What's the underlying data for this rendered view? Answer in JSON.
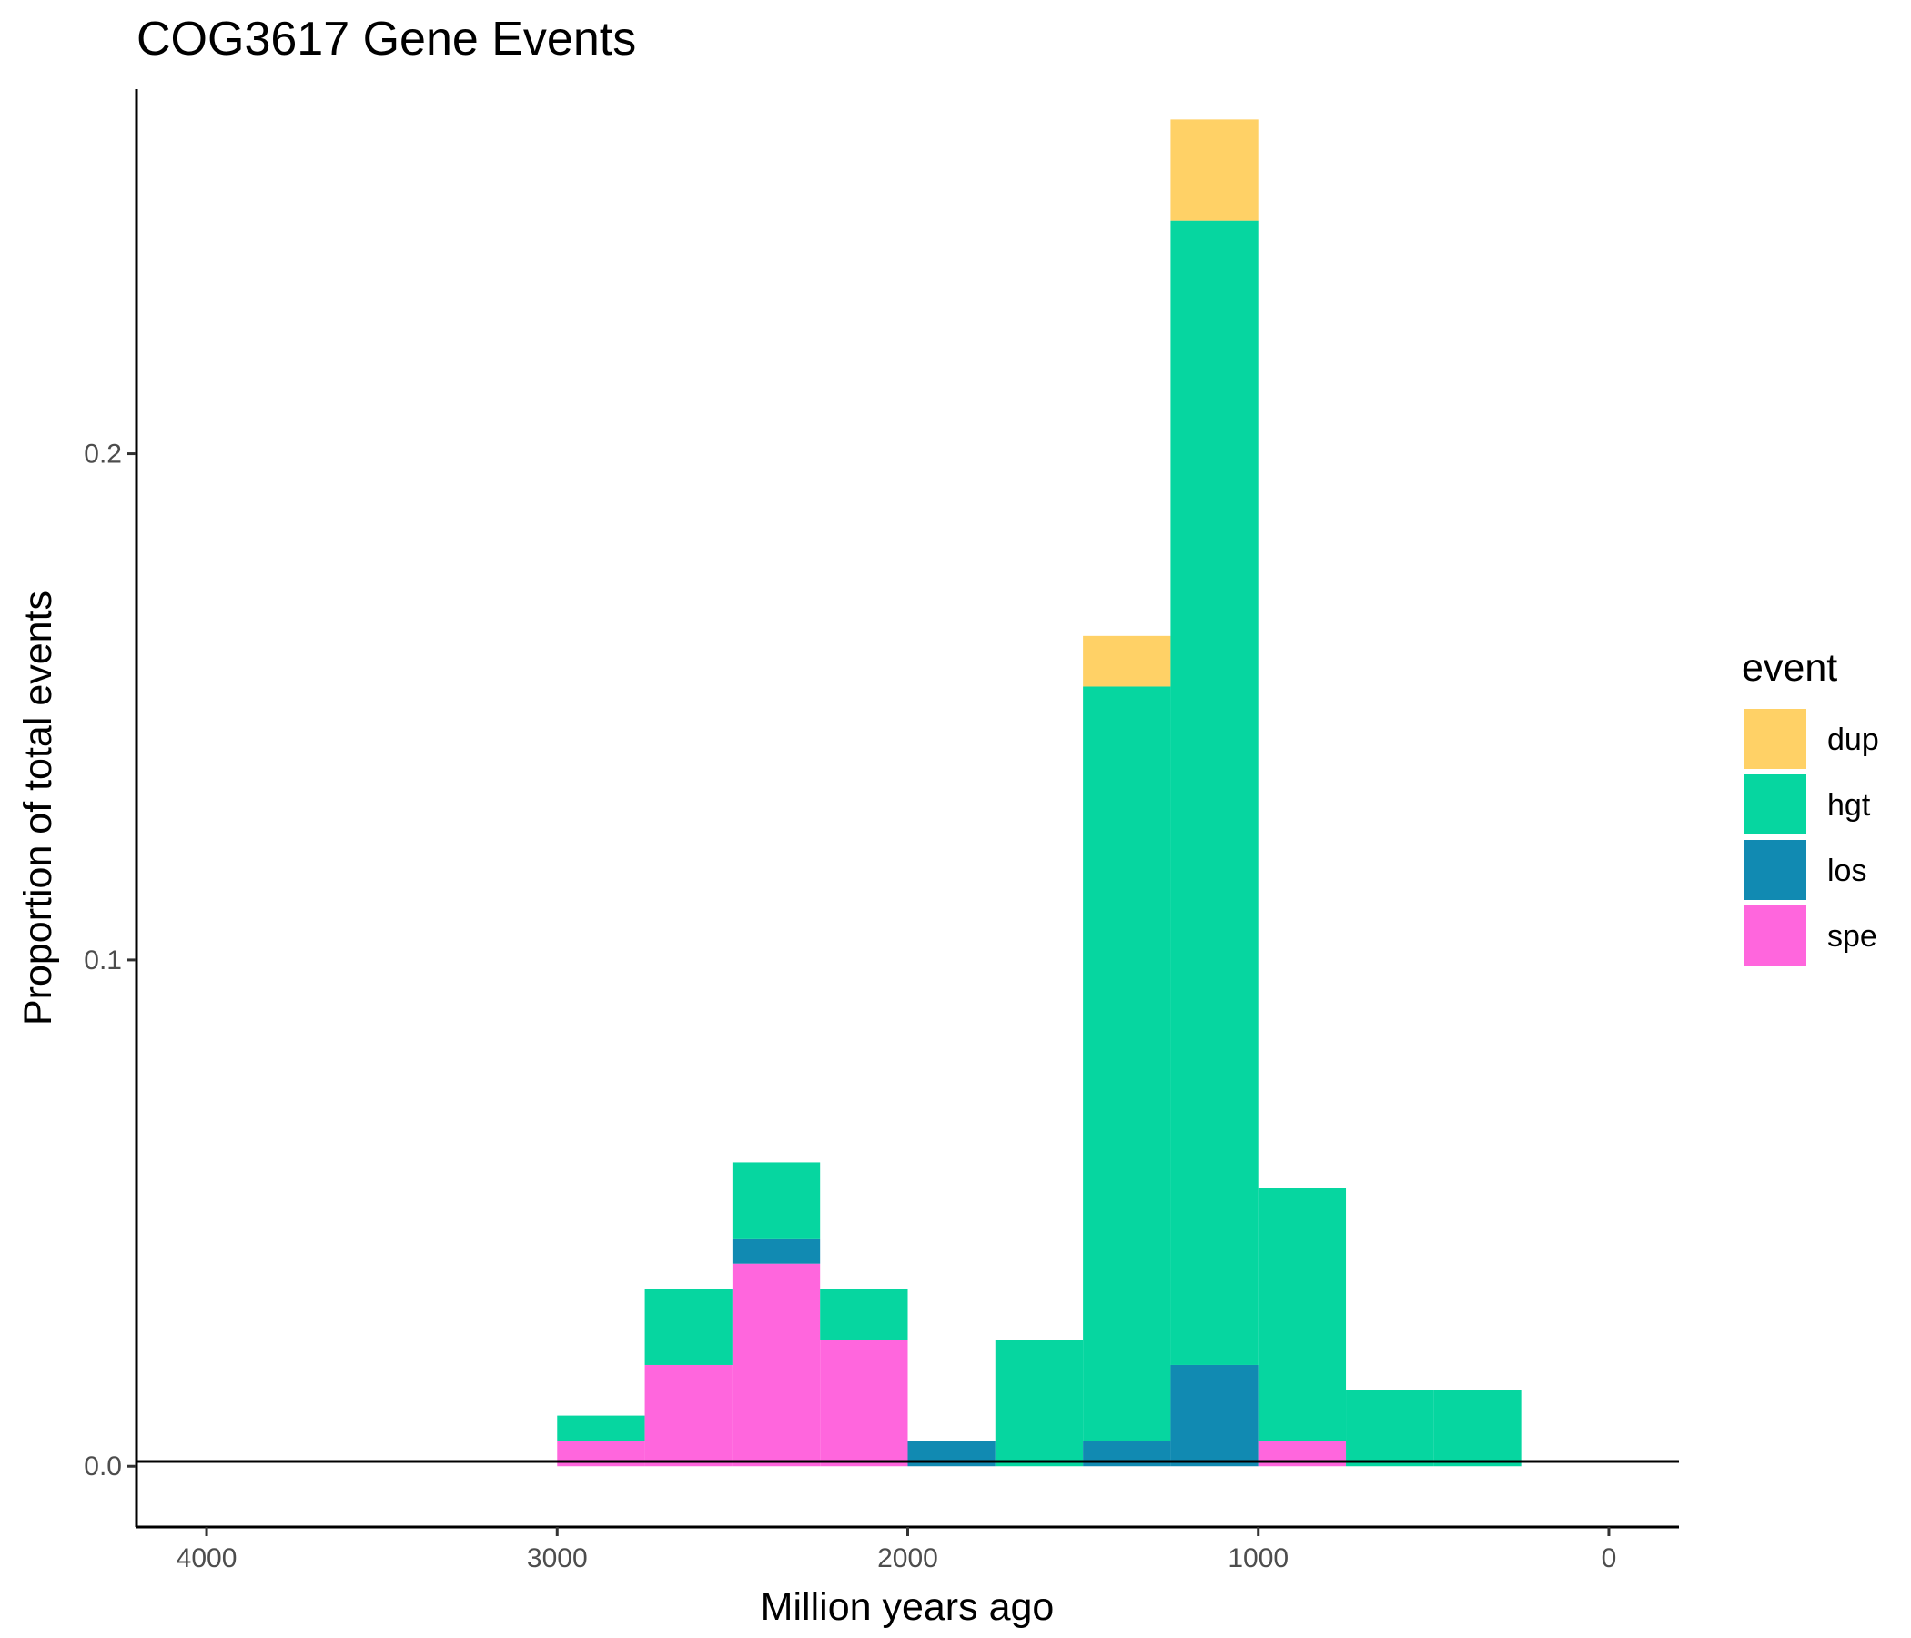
{
  "chart_data": {
    "type": "bar",
    "stacked": true,
    "title": "COG3617 Gene Events",
    "xlabel": "Million years ago",
    "ylabel": "Proportion of total events",
    "x_reversed": true,
    "xlim": [
      4200,
      -200
    ],
    "ylim": [
      -0.012,
      0.272
    ],
    "x_ticks": [
      4000,
      3000,
      2000,
      1000,
      0
    ],
    "x_tick_labels": [
      "4000",
      "3000",
      "2000",
      "1000",
      "0"
    ],
    "y_ticks": [
      0.0,
      0.1,
      0.2
    ],
    "y_tick_labels": [
      "0.0",
      "0.1",
      "0.2"
    ],
    "grid": false,
    "legend_position": "right",
    "legend_title": "event",
    "bin_width": 250,
    "bin_starts": [
      3000,
      2750,
      2500,
      2250,
      2000,
      1750,
      1500,
      1250,
      1000,
      750,
      500
    ],
    "series": [
      {
        "name": "spe",
        "color": "#FF66DD",
        "values": [
          0.005,
          0.02,
          0.04,
          0.025,
          0,
          0,
          0,
          0,
          0.005,
          0,
          0
        ]
      },
      {
        "name": "los",
        "color": "#118AB2",
        "values": [
          0,
          0,
          0.005,
          0,
          0.005,
          0,
          0.005,
          0.02,
          0,
          0,
          0
        ]
      },
      {
        "name": "hgt",
        "color": "#06D6A0",
        "values": [
          0.005,
          0.015,
          0.015,
          0.01,
          0,
          0.025,
          0.149,
          0.226,
          0.05,
          0.015,
          0.015
        ]
      },
      {
        "name": "dup",
        "color": "#FFD166",
        "values": [
          0,
          0,
          0,
          0,
          0,
          0,
          0.01,
          0.02,
          0,
          0,
          0
        ]
      }
    ],
    "legend_order": [
      "dup",
      "hgt",
      "los",
      "spe"
    ]
  }
}
